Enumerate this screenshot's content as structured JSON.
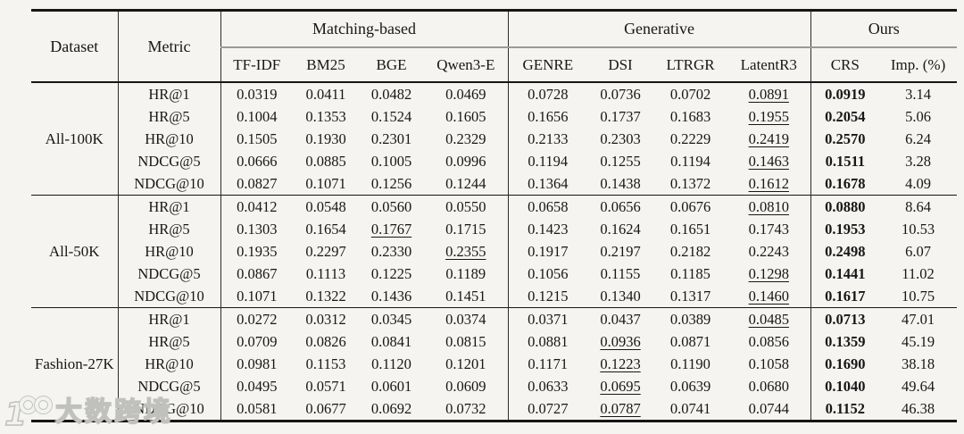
{
  "table": {
    "header": {
      "dataset": "Dataset",
      "metric": "Metric"
    },
    "col_groups": [
      {
        "label": "Matching-based",
        "cols": [
          "TF-IDF",
          "BM25",
          "BGE",
          "Qwen3-E"
        ]
      },
      {
        "label": "Generative",
        "cols": [
          "GENRE",
          "DSI",
          "LTRGR",
          "LatentR3"
        ]
      },
      {
        "label": "Ours",
        "cols": [
          "CRS",
          "Imp. (%)"
        ]
      }
    ],
    "blocks": [
      {
        "dataset": "All-100K",
        "rows": [
          {
            "metric": "HR@1",
            "values": [
              "0.0319",
              "0.0411",
              "0.0482",
              "0.0469",
              "0.0728",
              "0.0736",
              "0.0702",
              "0.0891",
              "0.0919",
              "3.14"
            ],
            "underline_col": 7,
            "bold_col": 8
          },
          {
            "metric": "HR@5",
            "values": [
              "0.1004",
              "0.1353",
              "0.1524",
              "0.1605",
              "0.1656",
              "0.1737",
              "0.1683",
              "0.1955",
              "0.2054",
              "5.06"
            ],
            "underline_col": 7,
            "bold_col": 8
          },
          {
            "metric": "HR@10",
            "values": [
              "0.1505",
              "0.1930",
              "0.2301",
              "0.2329",
              "0.2133",
              "0.2303",
              "0.2229",
              "0.2419",
              "0.2570",
              "6.24"
            ],
            "underline_col": 7,
            "bold_col": 8
          },
          {
            "metric": "NDCG@5",
            "values": [
              "0.0666",
              "0.0885",
              "0.1005",
              "0.0996",
              "0.1194",
              "0.1255",
              "0.1194",
              "0.1463",
              "0.1511",
              "3.28"
            ],
            "underline_col": 7,
            "bold_col": 8
          },
          {
            "metric": "NDCG@10",
            "values": [
              "0.0827",
              "0.1071",
              "0.1256",
              "0.1244",
              "0.1364",
              "0.1438",
              "0.1372",
              "0.1612",
              "0.1678",
              "4.09"
            ],
            "underline_col": 7,
            "bold_col": 8
          }
        ]
      },
      {
        "dataset": "All-50K",
        "rows": [
          {
            "metric": "HR@1",
            "values": [
              "0.0412",
              "0.0548",
              "0.0560",
              "0.0550",
              "0.0658",
              "0.0656",
              "0.0676",
              "0.0810",
              "0.0880",
              "8.64"
            ],
            "underline_col": 7,
            "bold_col": 8
          },
          {
            "metric": "HR@5",
            "values": [
              "0.1303",
              "0.1654",
              "0.1767",
              "0.1715",
              "0.1423",
              "0.1624",
              "0.1651",
              "0.1743",
              "0.1953",
              "10.53"
            ],
            "underline_col": 2,
            "bold_col": 8
          },
          {
            "metric": "HR@10",
            "values": [
              "0.1935",
              "0.2297",
              "0.2330",
              "0.2355",
              "0.1917",
              "0.2197",
              "0.2182",
              "0.2243",
              "0.2498",
              "6.07"
            ],
            "underline_col": 3,
            "bold_col": 8
          },
          {
            "metric": "NDCG@5",
            "values": [
              "0.0867",
              "0.1113",
              "0.1225",
              "0.1189",
              "0.1056",
              "0.1155",
              "0.1185",
              "0.1298",
              "0.1441",
              "11.02"
            ],
            "underline_col": 7,
            "bold_col": 8
          },
          {
            "metric": "NDCG@10",
            "values": [
              "0.1071",
              "0.1322",
              "0.1436",
              "0.1451",
              "0.1215",
              "0.1340",
              "0.1317",
              "0.1460",
              "0.1617",
              "10.75"
            ],
            "underline_col": 7,
            "bold_col": 8
          }
        ]
      },
      {
        "dataset": "Fashion-27K",
        "rows": [
          {
            "metric": "HR@1",
            "values": [
              "0.0272",
              "0.0312",
              "0.0345",
              "0.0374",
              "0.0371",
              "0.0437",
              "0.0389",
              "0.0485",
              "0.0713",
              "47.01"
            ],
            "underline_col": 7,
            "bold_col": 8
          },
          {
            "metric": "HR@5",
            "values": [
              "0.0709",
              "0.0826",
              "0.0841",
              "0.0815",
              "0.0881",
              "0.0936",
              "0.0871",
              "0.0856",
              "0.1359",
              "45.19"
            ],
            "underline_col": 5,
            "bold_col": 8
          },
          {
            "metric": "HR@10",
            "values": [
              "0.0981",
              "0.1153",
              "0.1120",
              "0.1201",
              "0.1171",
              "0.1223",
              "0.1190",
              "0.1058",
              "0.1690",
              "38.18"
            ],
            "underline_col": 5,
            "bold_col": 8
          },
          {
            "metric": "NDCG@5",
            "values": [
              "0.0495",
              "0.0571",
              "0.0601",
              "0.0609",
              "0.0633",
              "0.0695",
              "0.0639",
              "0.0680",
              "0.1040",
              "49.64"
            ],
            "underline_col": 5,
            "bold_col": 8
          },
          {
            "metric": "NDCG@10",
            "values": [
              "0.0581",
              "0.0677",
              "0.0692",
              "0.0732",
              "0.0727",
              "0.0787",
              "0.0741",
              "0.0744",
              "0.1152",
              "46.38"
            ],
            "underline_col": 5,
            "bold_col": 8
          }
        ]
      }
    ]
  },
  "watermark": {
    "icon": "brand-100-logo",
    "text": "大数跨境"
  }
}
